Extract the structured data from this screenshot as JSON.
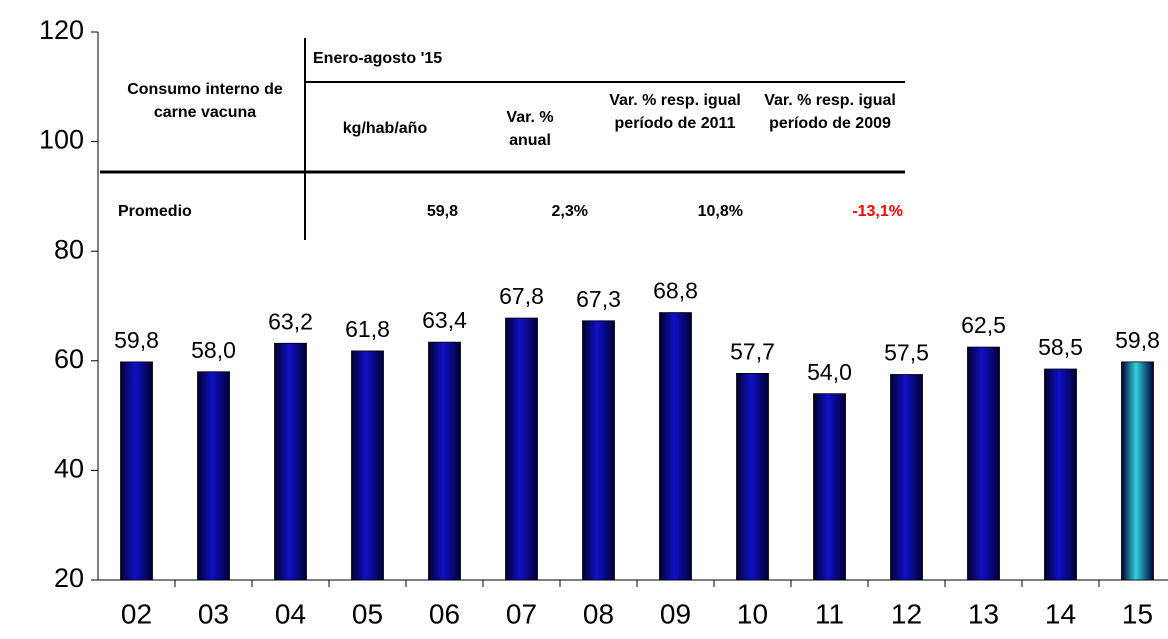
{
  "chart_data": {
    "type": "bar",
    "categories": [
      "02",
      "03",
      "04",
      "05",
      "06",
      "07",
      "08",
      "09",
      "10",
      "11",
      "12",
      "13",
      "14",
      "15"
    ],
    "values": [
      59.8,
      58.0,
      63.2,
      61.8,
      63.4,
      67.8,
      67.3,
      68.8,
      57.7,
      54.0,
      57.5,
      62.5,
      58.5,
      59.8
    ],
    "value_labels": [
      "59,8",
      "58,0",
      "63,2",
      "61,8",
      "63,4",
      "67,8",
      "67,3",
      "68,8",
      "57,7",
      "54,0",
      "57,5",
      "62,5",
      "58,5",
      "59,8"
    ],
    "colors": [
      "#1010c8",
      "#1010c8",
      "#1010c8",
      "#1010c8",
      "#1010c8",
      "#1010c8",
      "#1010c8",
      "#1010c8",
      "#1010c8",
      "#1010c8",
      "#1010c8",
      "#1010c8",
      "#1010c8",
      "#30d0e0"
    ],
    "ylim": [
      20,
      120
    ],
    "yticks": [
      20,
      40,
      60,
      80,
      100,
      120
    ]
  },
  "table": {
    "row_header": "Consumo interno de carne vacuna",
    "group": "Enero-agosto '15",
    "columns": [
      "kg/hab/año",
      "Var. % anual",
      "Var. % resp. igual período de 2011",
      "Var. % resp. igual período de 2009"
    ],
    "row": {
      "label": "Promedio",
      "cells": [
        "59,8",
        "2,3%",
        "10,8%",
        "-13,1%"
      ]
    }
  }
}
